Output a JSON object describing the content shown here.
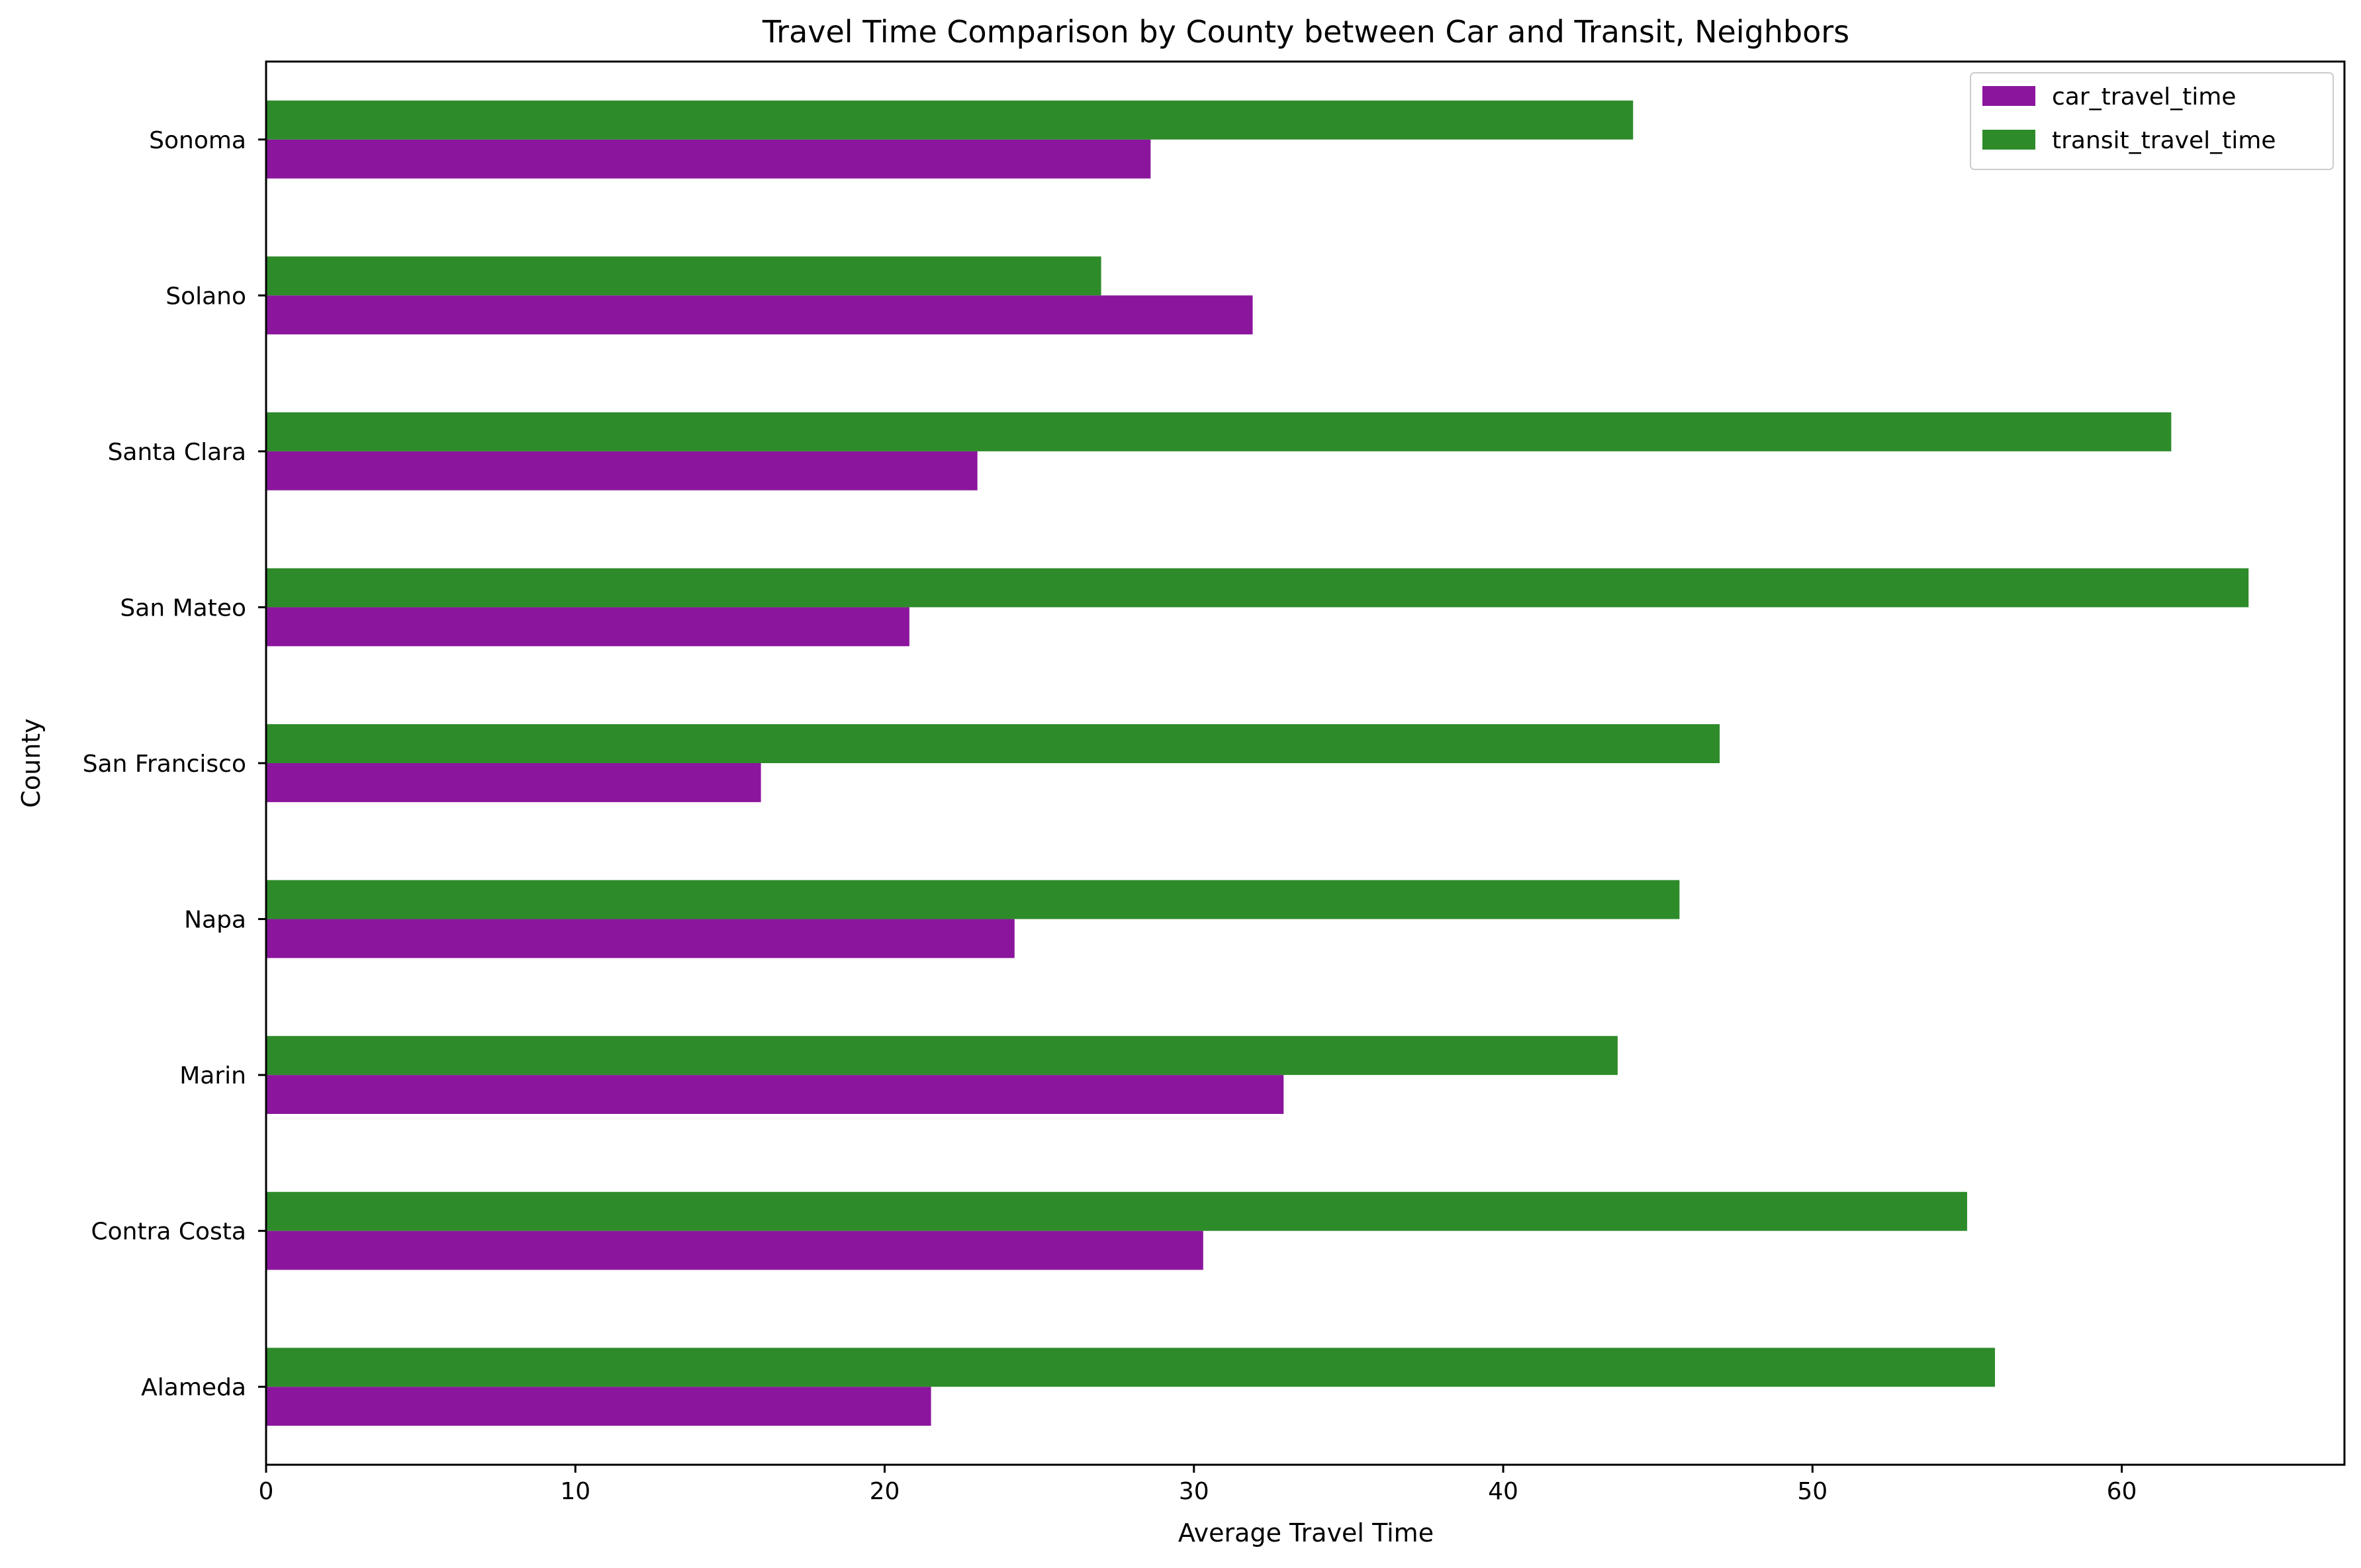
{
  "chart_data": {
    "type": "bar",
    "orientation": "horizontal",
    "title": "Travel Time Comparison by County between Car and Transit, Neighbors",
    "xlabel": "Average Travel Time",
    "ylabel": "County",
    "xlim": [
      0,
      67.2
    ],
    "xticks": [
      0,
      10,
      20,
      30,
      40,
      50,
      60
    ],
    "categories": [
      "Alameda",
      "Contra Costa",
      "Marin",
      "Napa",
      "San Francisco",
      "San Mateo",
      "Santa Clara",
      "Solano",
      "Sonoma"
    ],
    "series": [
      {
        "name": "car_travel_time",
        "color": "#8b169d",
        "values": [
          21.5,
          30.3,
          32.9,
          24.2,
          16.0,
          20.8,
          23.0,
          31.9,
          28.6
        ]
      },
      {
        "name": "transit_travel_time",
        "color": "#2e8b2a",
        "values": [
          55.9,
          55.0,
          43.7,
          45.7,
          47.0,
          64.1,
          61.6,
          27.0,
          44.2
        ]
      }
    ],
    "legend_position": "top-right",
    "grid": false
  }
}
